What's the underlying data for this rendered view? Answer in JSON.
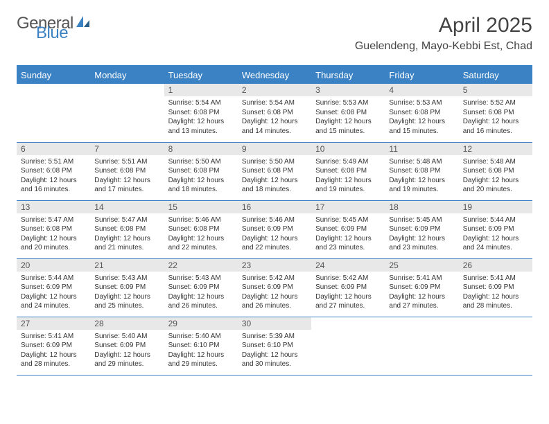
{
  "logo": {
    "word1": "General",
    "word2": "Blue"
  },
  "title": "April 2025",
  "location": "Guelendeng, Mayo-Kebbi Est, Chad",
  "header_color": "#3b82c4",
  "daynum_bg": "#e8e8e8",
  "border_color": "#3b82c4",
  "days": [
    "Sunday",
    "Monday",
    "Tuesday",
    "Wednesday",
    "Thursday",
    "Friday",
    "Saturday"
  ],
  "lead_blanks": 2,
  "cells": [
    {
      "n": "1",
      "sr": "5:54 AM",
      "ss": "6:08 PM",
      "dl": "12 hours and 13 minutes."
    },
    {
      "n": "2",
      "sr": "5:54 AM",
      "ss": "6:08 PM",
      "dl": "12 hours and 14 minutes."
    },
    {
      "n": "3",
      "sr": "5:53 AM",
      "ss": "6:08 PM",
      "dl": "12 hours and 15 minutes."
    },
    {
      "n": "4",
      "sr": "5:53 AM",
      "ss": "6:08 PM",
      "dl": "12 hours and 15 minutes."
    },
    {
      "n": "5",
      "sr": "5:52 AM",
      "ss": "6:08 PM",
      "dl": "12 hours and 16 minutes."
    },
    {
      "n": "6",
      "sr": "5:51 AM",
      "ss": "6:08 PM",
      "dl": "12 hours and 16 minutes."
    },
    {
      "n": "7",
      "sr": "5:51 AM",
      "ss": "6:08 PM",
      "dl": "12 hours and 17 minutes."
    },
    {
      "n": "8",
      "sr": "5:50 AM",
      "ss": "6:08 PM",
      "dl": "12 hours and 18 minutes."
    },
    {
      "n": "9",
      "sr": "5:50 AM",
      "ss": "6:08 PM",
      "dl": "12 hours and 18 minutes."
    },
    {
      "n": "10",
      "sr": "5:49 AM",
      "ss": "6:08 PM",
      "dl": "12 hours and 19 minutes."
    },
    {
      "n": "11",
      "sr": "5:48 AM",
      "ss": "6:08 PM",
      "dl": "12 hours and 19 minutes."
    },
    {
      "n": "12",
      "sr": "5:48 AM",
      "ss": "6:08 PM",
      "dl": "12 hours and 20 minutes."
    },
    {
      "n": "13",
      "sr": "5:47 AM",
      "ss": "6:08 PM",
      "dl": "12 hours and 20 minutes."
    },
    {
      "n": "14",
      "sr": "5:47 AM",
      "ss": "6:08 PM",
      "dl": "12 hours and 21 minutes."
    },
    {
      "n": "15",
      "sr": "5:46 AM",
      "ss": "6:08 PM",
      "dl": "12 hours and 22 minutes."
    },
    {
      "n": "16",
      "sr": "5:46 AM",
      "ss": "6:09 PM",
      "dl": "12 hours and 22 minutes."
    },
    {
      "n": "17",
      "sr": "5:45 AM",
      "ss": "6:09 PM",
      "dl": "12 hours and 23 minutes."
    },
    {
      "n": "18",
      "sr": "5:45 AM",
      "ss": "6:09 PM",
      "dl": "12 hours and 23 minutes."
    },
    {
      "n": "19",
      "sr": "5:44 AM",
      "ss": "6:09 PM",
      "dl": "12 hours and 24 minutes."
    },
    {
      "n": "20",
      "sr": "5:44 AM",
      "ss": "6:09 PM",
      "dl": "12 hours and 24 minutes."
    },
    {
      "n": "21",
      "sr": "5:43 AM",
      "ss": "6:09 PM",
      "dl": "12 hours and 25 minutes."
    },
    {
      "n": "22",
      "sr": "5:43 AM",
      "ss": "6:09 PM",
      "dl": "12 hours and 26 minutes."
    },
    {
      "n": "23",
      "sr": "5:42 AM",
      "ss": "6:09 PM",
      "dl": "12 hours and 26 minutes."
    },
    {
      "n": "24",
      "sr": "5:42 AM",
      "ss": "6:09 PM",
      "dl": "12 hours and 27 minutes."
    },
    {
      "n": "25",
      "sr": "5:41 AM",
      "ss": "6:09 PM",
      "dl": "12 hours and 27 minutes."
    },
    {
      "n": "26",
      "sr": "5:41 AM",
      "ss": "6:09 PM",
      "dl": "12 hours and 28 minutes."
    },
    {
      "n": "27",
      "sr": "5:41 AM",
      "ss": "6:09 PM",
      "dl": "12 hours and 28 minutes."
    },
    {
      "n": "28",
      "sr": "5:40 AM",
      "ss": "6:09 PM",
      "dl": "12 hours and 29 minutes."
    },
    {
      "n": "29",
      "sr": "5:40 AM",
      "ss": "6:10 PM",
      "dl": "12 hours and 29 minutes."
    },
    {
      "n": "30",
      "sr": "5:39 AM",
      "ss": "6:10 PM",
      "dl": "12 hours and 30 minutes."
    }
  ],
  "labels": {
    "sunrise": "Sunrise:",
    "sunset": "Sunset:",
    "daylight": "Daylight:"
  }
}
